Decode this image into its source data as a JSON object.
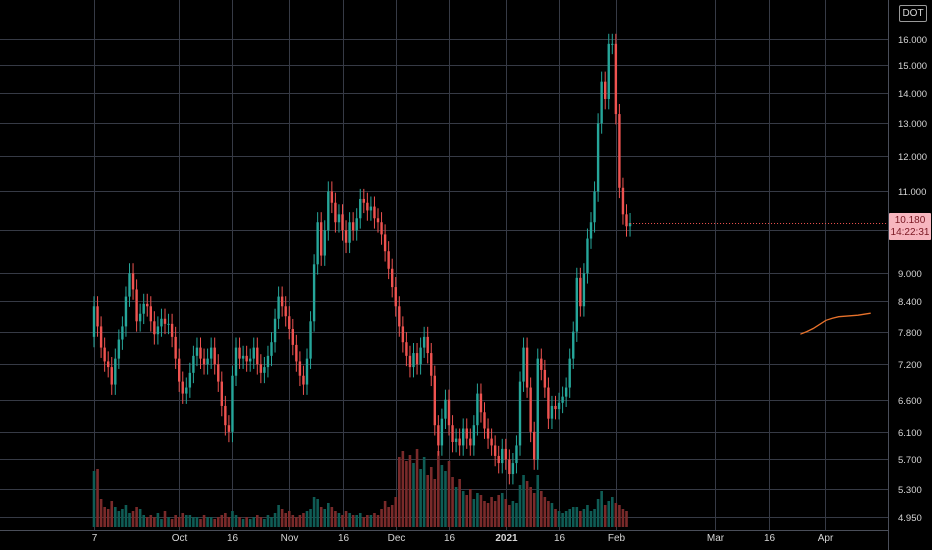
{
  "symbol": "DOT",
  "last_price": {
    "value": "10.180",
    "countdown": "14:22:31"
  },
  "colors": {
    "up": "#26a69a",
    "down": "#ef5350",
    "up_volume": "#0f5c55",
    "down_volume": "#7a2a2a",
    "grid": "#363a45",
    "text": "#d6d6d6",
    "price_line": "#ef5350",
    "indicator": "#e8722b",
    "price_tag": "#f7b6bf"
  },
  "chart_data": {
    "type": "candlestick",
    "y_scale": "log",
    "y_ticks": [
      "4.950",
      "5.300",
      "5.700",
      "6.100",
      "6.600",
      "7.200",
      "7.800",
      "8.400",
      "9.000",
      "10.000",
      "11.000",
      "12.000",
      "13.000",
      "14.000",
      "15.000",
      "16.000"
    ],
    "x_ticks": [
      {
        "label": "7",
        "index": 0
      },
      {
        "label": "Oct",
        "index": 24
      },
      {
        "label": "16",
        "index": 39
      },
      {
        "label": "Nov",
        "index": 55
      },
      {
        "label": "16",
        "index": 70
      },
      {
        "label": "Dec",
        "index": 85
      },
      {
        "label": "16",
        "index": 100
      },
      {
        "label": "2021",
        "index": 116,
        "bold": true
      },
      {
        "label": "16",
        "index": 131
      },
      {
        "label": "Feb",
        "index": 147
      },
      {
        "label": "Mar",
        "index": 175
      },
      {
        "label": "16",
        "index": 190
      },
      {
        "label": "Apr",
        "index": 206
      }
    ],
    "candles": [
      [
        7.7,
        8.3
      ],
      [
        8.3,
        7.9
      ],
      [
        7.9,
        7.5
      ],
      [
        7.5,
        7.25
      ],
      [
        7.25,
        7.15
      ],
      [
        7.15,
        6.85
      ],
      [
        6.85,
        7.3
      ],
      [
        7.3,
        7.65
      ],
      [
        7.65,
        7.9
      ],
      [
        7.9,
        8.5
      ],
      [
        8.5,
        9.0
      ],
      [
        9.0,
        8.65
      ],
      [
        8.65,
        8.0
      ],
      [
        8.0,
        8.15
      ],
      [
        8.15,
        8.35
      ],
      [
        8.35,
        8.3
      ],
      [
        8.3,
        8.0
      ],
      [
        8.0,
        7.75
      ],
      [
        7.75,
        7.9
      ],
      [
        7.9,
        8.05
      ],
      [
        8.05,
        7.95
      ],
      [
        7.95,
        7.95
      ],
      [
        7.95,
        7.7
      ],
      [
        7.7,
        7.3
      ],
      [
        7.3,
        6.9
      ],
      [
        6.9,
        6.7
      ],
      [
        6.7,
        6.8
      ],
      [
        6.8,
        7.05
      ],
      [
        7.05,
        7.35
      ],
      [
        7.35,
        7.5
      ],
      [
        7.5,
        7.3
      ],
      [
        7.3,
        7.2
      ],
      [
        7.2,
        7.3
      ],
      [
        7.3,
        7.5
      ],
      [
        7.5,
        7.2
      ],
      [
        7.2,
        6.9
      ],
      [
        6.9,
        6.5
      ],
      [
        6.5,
        6.2
      ],
      [
        6.2,
        6.1
      ],
      [
        6.1,
        7.0
      ],
      [
        7.0,
        7.5
      ],
      [
        7.5,
        7.3
      ],
      [
        7.3,
        7.35
      ],
      [
        7.35,
        7.25
      ],
      [
        7.25,
        7.3
      ],
      [
        7.3,
        7.5
      ],
      [
        7.5,
        7.2
      ],
      [
        7.2,
        7.05
      ],
      [
        7.05,
        7.15
      ],
      [
        7.15,
        7.35
      ],
      [
        7.35,
        7.6
      ],
      [
        7.6,
        8.05
      ],
      [
        8.05,
        8.5
      ],
      [
        8.5,
        8.3
      ],
      [
        8.3,
        8.1
      ],
      [
        8.1,
        7.85
      ],
      [
        7.85,
        7.55
      ],
      [
        7.55,
        7.25
      ],
      [
        7.25,
        7.0
      ],
      [
        7.0,
        6.85
      ],
      [
        6.85,
        7.3
      ],
      [
        7.3,
        8.0
      ],
      [
        8.0,
        9.2
      ],
      [
        9.2,
        10.2
      ],
      [
        10.2,
        9.4
      ],
      [
        9.4,
        10.0
      ],
      [
        10.0,
        11.0
      ],
      [
        11.0,
        10.7
      ],
      [
        10.7,
        10.2
      ],
      [
        10.2,
        10.4
      ],
      [
        10.4,
        10.0
      ],
      [
        10.0,
        9.7
      ],
      [
        9.7,
        10.2
      ],
      [
        10.2,
        10.0
      ],
      [
        10.0,
        10.3
      ],
      [
        10.3,
        10.8
      ],
      [
        10.8,
        10.7
      ],
      [
        10.7,
        10.5
      ],
      [
        10.5,
        10.6
      ],
      [
        10.6,
        10.3
      ],
      [
        10.3,
        10.2
      ],
      [
        10.2,
        9.9
      ],
      [
        9.9,
        9.5
      ],
      [
        9.5,
        9.1
      ],
      [
        9.1,
        8.7
      ],
      [
        8.7,
        8.3
      ],
      [
        8.3,
        7.9
      ],
      [
        7.9,
        7.6
      ],
      [
        7.6,
        7.35
      ],
      [
        7.35,
        7.15
      ],
      [
        7.15,
        7.4
      ],
      [
        7.4,
        7.2
      ],
      [
        7.2,
        7.5
      ],
      [
        7.5,
        7.7
      ],
      [
        7.7,
        7.4
      ],
      [
        7.4,
        7.0
      ],
      [
        7.0,
        6.2
      ],
      [
        6.2,
        5.9
      ],
      [
        5.9,
        6.3
      ],
      [
        6.3,
        6.6
      ],
      [
        6.6,
        6.2
      ],
      [
        6.2,
        5.95
      ],
      [
        5.95,
        6.0
      ],
      [
        6.0,
        5.9
      ],
      [
        5.9,
        6.15
      ],
      [
        6.15,
        6.0
      ],
      [
        6.0,
        5.9
      ],
      [
        5.9,
        6.2
      ],
      [
        6.2,
        6.7
      ],
      [
        6.7,
        6.4
      ],
      [
        6.4,
        6.15
      ],
      [
        6.15,
        6.0
      ],
      [
        6.0,
        5.9
      ],
      [
        5.9,
        5.75
      ],
      [
        5.75,
        5.65
      ],
      [
        5.65,
        5.85
      ],
      [
        5.85,
        5.7
      ],
      [
        5.7,
        5.5
      ],
      [
        5.5,
        5.65
      ],
      [
        5.65,
        5.9
      ],
      [
        5.9,
        6.9
      ],
      [
        6.9,
        7.5
      ],
      [
        7.5,
        6.8
      ],
      [
        6.8,
        6.1
      ],
      [
        6.1,
        5.7
      ],
      [
        5.7,
        7.3
      ],
      [
        7.3,
        7.1
      ],
      [
        7.1,
        6.8
      ],
      [
        6.8,
        6.3
      ],
      [
        6.3,
        6.5
      ],
      [
        6.5,
        6.45
      ],
      [
        6.45,
        6.55
      ],
      [
        6.55,
        6.65
      ],
      [
        6.65,
        6.8
      ],
      [
        6.8,
        7.3
      ],
      [
        7.3,
        7.8
      ],
      [
        7.8,
        8.9
      ],
      [
        8.9,
        8.3
      ],
      [
        8.3,
        9.0
      ],
      [
        9.0,
        9.8
      ],
      [
        9.8,
        10.2
      ],
      [
        10.2,
        11.0
      ],
      [
        11.0,
        13.0
      ],
      [
        13.0,
        14.4
      ],
      [
        14.4,
        13.8
      ],
      [
        13.8,
        15.8
      ],
      [
        15.8,
        15.8
      ],
      [
        15.8,
        13.3
      ],
      [
        13.3,
        11.1
      ],
      [
        11.1,
        10.4
      ],
      [
        10.4,
        10.1
      ],
      [
        10.1,
        10.18
      ]
    ],
    "volumes": [
      2.8,
      2.9,
      1.4,
      1.0,
      0.9,
      1.3,
      1.0,
      0.8,
      0.9,
      1.1,
      0.7,
      0.8,
      1.0,
      0.9,
      0.6,
      0.5,
      0.6,
      0.5,
      0.7,
      0.4,
      0.8,
      0.5,
      0.4,
      0.6,
      0.5,
      0.7,
      0.6,
      0.6,
      0.5,
      0.5,
      0.4,
      0.6,
      0.5,
      0.5,
      0.4,
      0.5,
      0.6,
      0.7,
      0.5,
      0.8,
      0.6,
      0.5,
      0.4,
      0.5,
      0.4,
      0.5,
      0.6,
      0.5,
      0.4,
      0.6,
      0.5,
      0.7,
      1.1,
      0.9,
      0.7,
      0.8,
      0.6,
      0.5,
      0.6,
      0.7,
      0.8,
      0.9,
      1.5,
      1.4,
      1.0,
      0.9,
      1.2,
      1.0,
      0.8,
      0.7,
      0.6,
      0.8,
      0.7,
      0.6,
      0.6,
      0.7,
      0.5,
      0.6,
      0.6,
      0.7,
      0.6,
      0.9,
      1.3,
      1.0,
      1.1,
      1.5,
      3.5,
      3.8,
      3.3,
      3.6,
      3.2,
      3.9,
      2.9,
      3.5,
      2.6,
      3.0,
      2.4,
      3.8,
      3.1,
      2.8,
      3.3,
      2.5,
      2.0,
      2.4,
      1.8,
      1.6,
      1.9,
      1.4,
      1.7,
      1.6,
      1.3,
      1.2,
      1.5,
      1.3,
      1.6,
      1.7,
      1.4,
      1.1,
      1.3,
      1.2,
      2.1,
      2.6,
      2.3,
      2.0,
      1.7,
      2.6,
      1.8,
      1.5,
      1.3,
      1.2,
      0.9,
      0.8,
      0.7,
      0.8,
      0.9,
      1.0,
      1.0,
      0.8,
      0.9,
      1.1,
      0.8,
      0.9,
      1.4,
      1.8,
      1.1,
      1.3,
      1.5,
      1.2,
      1.1,
      0.9,
      0.8
    ],
    "indicator_line": [
      7.75,
      7.8,
      7.86,
      7.94,
      8.02,
      8.06,
      8.09,
      8.1,
      8.11,
      8.12,
      8.14,
      8.16
    ]
  }
}
